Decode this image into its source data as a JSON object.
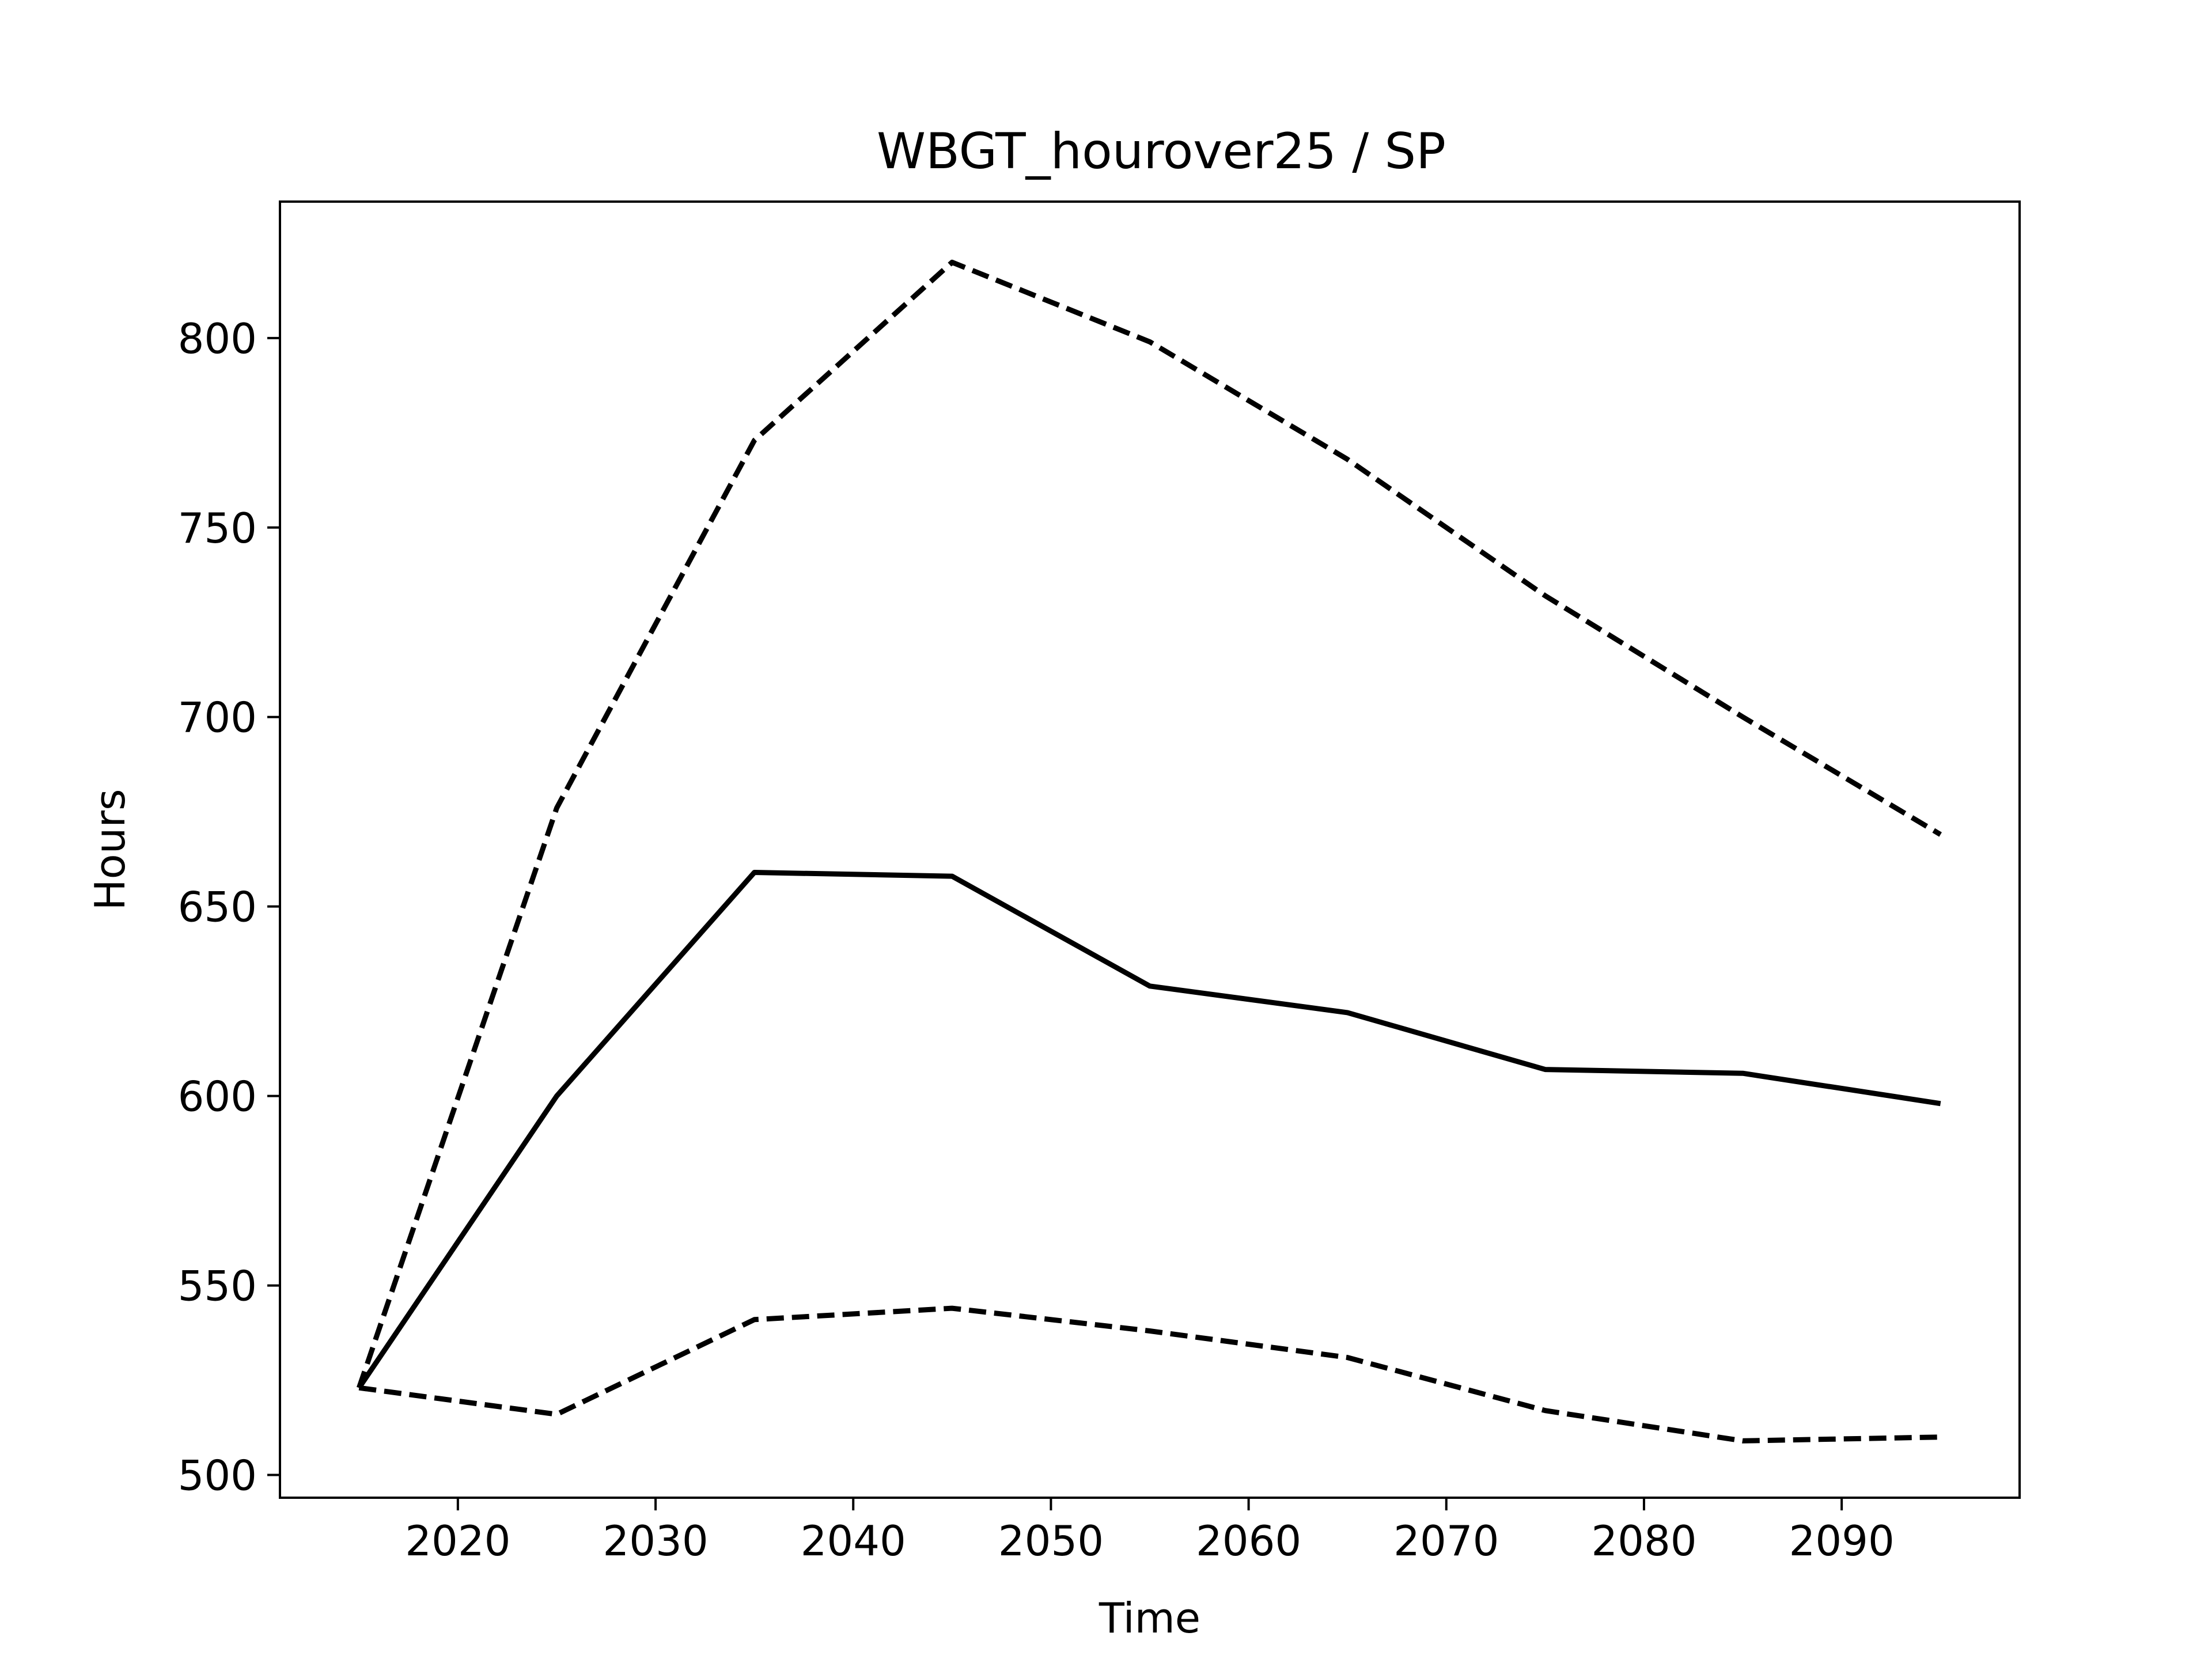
{
  "chart_data": {
    "type": "line",
    "title": "WBGT_hourover25 / SP",
    "xlabel": "Time",
    "ylabel": "Hours",
    "xlim": [
      2011,
      2099
    ],
    "ylim": [
      494,
      836
    ],
    "xticks": [
      2020,
      2030,
      2040,
      2050,
      2060,
      2070,
      2080,
      2090
    ],
    "yticks": [
      500,
      550,
      600,
      650,
      700,
      750,
      800
    ],
    "grid": false,
    "legend": "none",
    "series": [
      {
        "style": "solid",
        "color": "#000000",
        "x": [
          2015,
          2025,
          2035,
          2045,
          2055,
          2065,
          2075,
          2085,
          2095
        ],
        "y": [
          523,
          600,
          659,
          658,
          629,
          622,
          607,
          606,
          598
        ]
      },
      {
        "style": "dashed",
        "color": "#000000",
        "x": [
          2015,
          2025,
          2035,
          2045,
          2055,
          2065,
          2075,
          2085,
          2095
        ],
        "y": [
          523,
          676,
          773,
          820,
          799,
          768,
          732,
          700,
          669
        ]
      },
      {
        "style": "dashed",
        "color": "#000000",
        "x": [
          2015,
          2025,
          2035,
          2045,
          2055,
          2065,
          2075,
          2085,
          2095
        ],
        "y": [
          523,
          516,
          541,
          544,
          538,
          531,
          517,
          509,
          510
        ]
      }
    ]
  }
}
